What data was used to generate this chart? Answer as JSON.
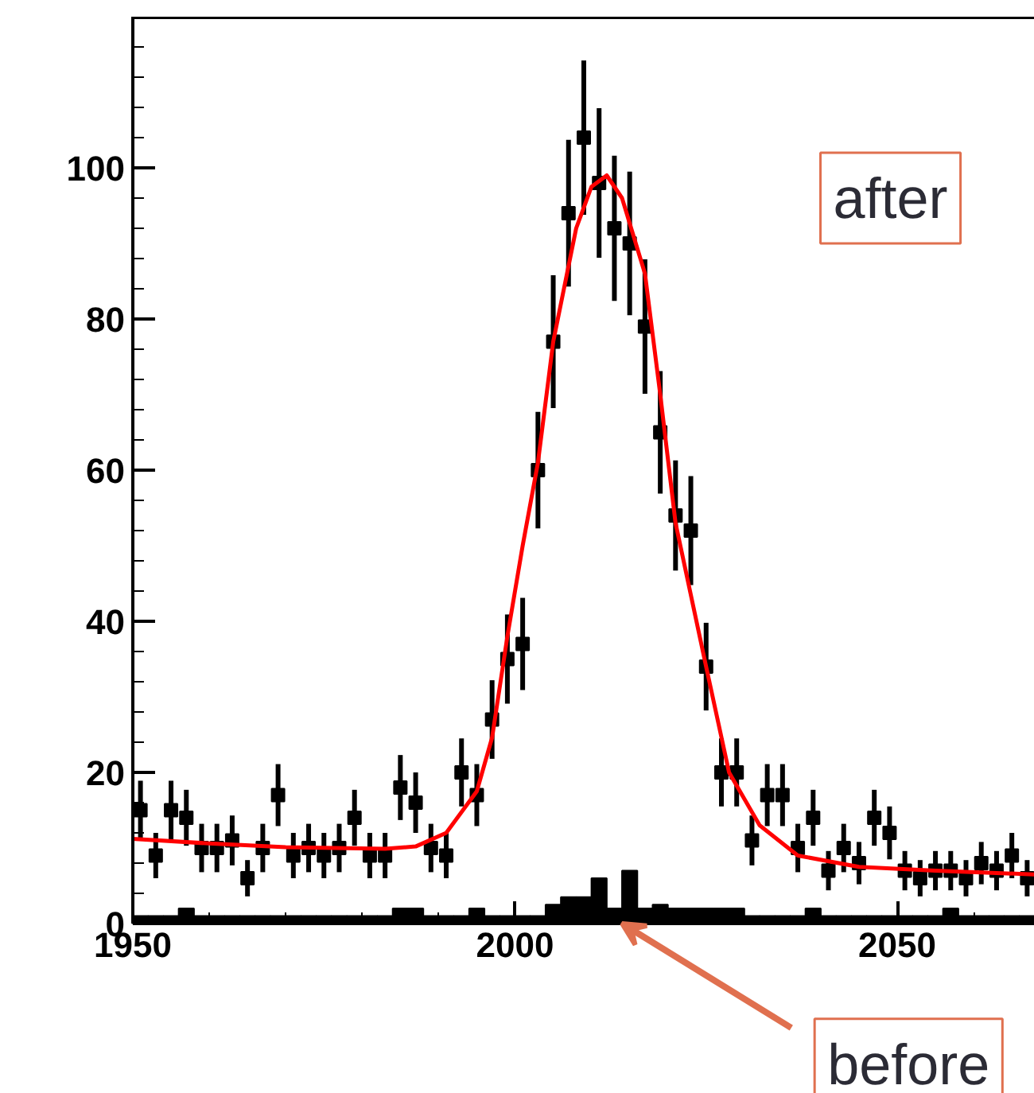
{
  "chart_data": {
    "type": "scatter",
    "xlim": [
      1950,
      2068
    ],
    "ylim": [
      0,
      120
    ],
    "xticks": [
      1950,
      2000,
      2050
    ],
    "yticks": [
      0,
      20,
      40,
      60,
      80,
      100
    ],
    "grid": false,
    "marker": "square",
    "series": [
      {
        "type": "histogram",
        "color": "#000000",
        "bins": [
          1950,
          1952,
          1954,
          1956,
          1958,
          1960,
          1962,
          1964,
          1966,
          1968,
          1970,
          1972,
          1974,
          1976,
          1978,
          1980,
          1982,
          1984,
          1986,
          1988,
          1990,
          1992,
          1994,
          1996,
          1998,
          2000,
          2002,
          2004,
          2006,
          2008,
          2010,
          2012,
          2014,
          2016,
          2018,
          2020,
          2022,
          2024,
          2026,
          2028,
          2030,
          2032,
          2034,
          2036,
          2038,
          2040,
          2042,
          2044,
          2046,
          2048,
          2050,
          2052,
          2054,
          2056,
          2058,
          2060,
          2062,
          2064,
          2066,
          2068
        ],
        "values": [
          1,
          1,
          1,
          2,
          1,
          1,
          1,
          1,
          1,
          1,
          1,
          1,
          1,
          1,
          1,
          1,
          1,
          2,
          2,
          1,
          1,
          1,
          2,
          1,
          1,
          1,
          1,
          2.5,
          3.5,
          3.5,
          6,
          2,
          7,
          2,
          2.5,
          2,
          2,
          2,
          2,
          2,
          1,
          1,
          1,
          1,
          2,
          1,
          1,
          1,
          1,
          1,
          1,
          1,
          1,
          2,
          1,
          1,
          1,
          1,
          1
        ]
      },
      {
        "color": "#000000",
        "x": [
          1951,
          1953,
          1955,
          1957,
          1959,
          1961,
          1963,
          1965,
          1967,
          1969,
          1971,
          1973,
          1975,
          1977,
          1979,
          1981,
          1983,
          1985,
          1987,
          1989,
          1991,
          1993,
          1995,
          1997,
          1999,
          2001,
          2003,
          2005,
          2007,
          2009,
          2011,
          2013,
          2015,
          2017,
          2019,
          2021,
          2023,
          2025,
          2027,
          2029,
          2031,
          2033,
          2035,
          2037,
          2039,
          2041,
          2043,
          2045,
          2047,
          2049,
          2051,
          2053,
          2055,
          2057,
          2059,
          2061,
          2063,
          2065,
          2067
        ],
        "values": [
          15,
          9,
          15,
          14,
          10,
          10,
          11,
          6,
          10,
          17,
          9,
          10,
          9,
          10,
          14,
          9,
          9,
          18,
          16,
          10,
          9,
          20,
          17,
          27,
          35,
          37,
          60,
          77,
          94,
          104,
          98,
          92,
          90,
          79,
          65,
          54,
          52,
          34,
          20,
          20,
          11,
          17,
          17,
          10,
          14,
          7,
          10,
          8,
          14,
          12,
          7,
          6,
          7,
          7,
          6,
          8,
          7,
          9,
          6
        ],
        "errors": [
          3.9,
          3,
          3.9,
          3.7,
          3.2,
          3.2,
          3.3,
          2.4,
          3.2,
          4.1,
          3,
          3.2,
          3,
          3.2,
          3.7,
          3,
          3,
          4.3,
          4,
          3.2,
          3,
          4.5,
          4.1,
          5.2,
          5.9,
          6.1,
          7.7,
          8.8,
          9.7,
          10.2,
          9.9,
          9.6,
          9.5,
          8.9,
          8.1,
          7.3,
          7.2,
          5.8,
          4.5,
          4.5,
          3.3,
          4.1,
          4.1,
          3.2,
          3.7,
          2.6,
          3.2,
          2.8,
          3.7,
          3.5,
          2.6,
          2.4,
          2.6,
          2.6,
          2.4,
          2.8,
          2.6,
          3,
          2.4
        ]
      },
      {
        "type": "line",
        "marker": "none",
        "color": "#ff0000",
        "x": [
          1950,
          1960,
          1970,
          1983,
          1987,
          1991,
          1995,
          1997,
          1999,
          2001,
          2003,
          2005,
          2008,
          2010,
          2012,
          2014,
          2017,
          2019,
          2021,
          2025,
          2028,
          2032,
          2037,
          2045,
          2055,
          2068
        ],
        "values": [
          11.2,
          10.6,
          10.1,
          9.9,
          10.2,
          12,
          17.5,
          24.6,
          38,
          50,
          61,
          77,
          92,
          97.5,
          99,
          96,
          86,
          70,
          53,
          34,
          20,
          13,
          9,
          7.5,
          7,
          6.5
        ]
      }
    ],
    "annotations": [
      "after",
      {
        "text": "before",
        "x": 2014,
        "y": 0
      }
    ]
  }
}
